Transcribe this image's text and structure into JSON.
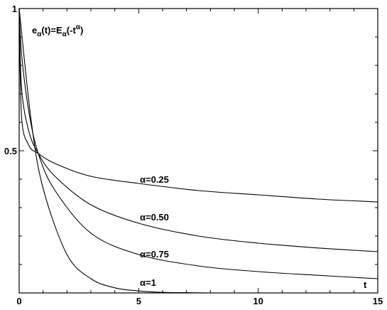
{
  "chart_data": {
    "type": "line",
    "title_parts": {
      "e": "e",
      "alpha_sub": "α",
      "t": "(t)=E",
      "alpha_sub2": "α",
      "minus_t": "(-t",
      "alpha_sup": "α",
      "close": ")"
    },
    "xlabel": "t",
    "ylabel": "",
    "xlim": [
      0,
      15
    ],
    "ylim": [
      0,
      1
    ],
    "x_ticks": [
      0,
      5,
      10,
      15
    ],
    "x_tick_labels": [
      "0",
      "5",
      "10",
      "15"
    ],
    "x_minor_step": 1,
    "y_ticks": [
      0.5,
      1
    ],
    "y_tick_labels": [
      "0.5",
      "1"
    ],
    "y_minor_step": 0.1,
    "grid": false,
    "series": [
      {
        "name": "α=0.25",
        "x": [
          0,
          0.1,
          0.4,
          0.8,
          1.5,
          3,
          5,
          7.5,
          10,
          12.5,
          15
        ],
        "values": [
          1,
          0.62,
          0.52,
          0.49,
          0.455,
          0.41,
          0.385,
          0.36,
          0.345,
          0.33,
          0.32
        ]
      },
      {
        "name": "α=0.50",
        "x": [
          0,
          0.1,
          0.4,
          0.8,
          1.5,
          3,
          5,
          7.5,
          10,
          12.5,
          15
        ],
        "values": [
          1,
          0.72,
          0.57,
          0.49,
          0.41,
          0.31,
          0.245,
          0.2,
          0.175,
          0.158,
          0.145
        ]
      },
      {
        "name": "α=0.75",
        "x": [
          0,
          0.1,
          0.4,
          0.8,
          1.5,
          3,
          5,
          7.5,
          10,
          12.5,
          15
        ],
        "values": [
          1,
          0.84,
          0.64,
          0.49,
          0.36,
          0.21,
          0.135,
          0.095,
          0.075,
          0.062,
          0.05
        ]
      },
      {
        "name": "α=1",
        "x": [
          0,
          0.5,
          1,
          2,
          3,
          4,
          5,
          6,
          7,
          8
        ],
        "values": [
          1,
          0.607,
          0.368,
          0.135,
          0.05,
          0.018,
          0.007,
          0.002,
          0.001,
          0
        ]
      }
    ]
  }
}
